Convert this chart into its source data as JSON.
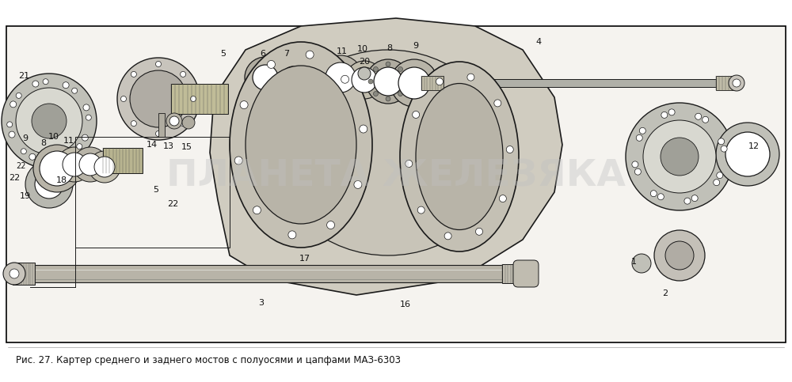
{
  "figure_width": 10.0,
  "figure_height": 4.83,
  "dpi": 100,
  "bg_color": "#ffffff",
  "border_color": "#000000",
  "border_linewidth": 1.2,
  "caption_text": "Рис. 27. Картер среднего и заднего мостов с полуосями и цапфами МАЗ-6303",
  "caption_fontsize": 8.5,
  "watermark_text": "ПЛАНЕТА ЖЕЛЕЗЯКА",
  "watermark_color": "#c0c0c0",
  "watermark_fontsize": 34,
  "watermark_alpha": 0.38,
  "drawing_bg": "#f0eeea",
  "line_color": "#1a1a1a",
  "part_color": "#d8d4cc",
  "part_dark": "#888880",
  "part_mid": "#b8b4ac"
}
